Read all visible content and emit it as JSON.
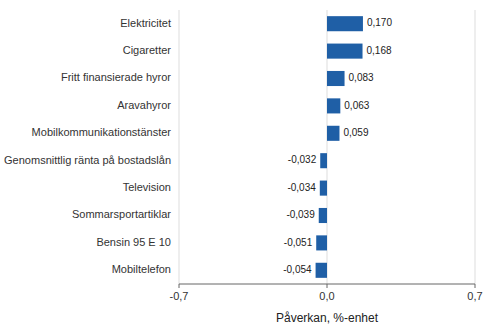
{
  "chart_data": {
    "type": "bar",
    "orientation": "horizontal",
    "categories": [
      "Mobiltelefon",
      "Bensin 95 E 10",
      "Sommarsportartiklar",
      "Television",
      "Genomsnittlig ränta på bostadslån",
      "Mobilkommunikationstänster",
      "Aravahyror",
      "Fritt finansierade hyror",
      "Cigaretter",
      "Elektricitet"
    ],
    "values": [
      -0.054,
      -0.051,
      -0.039,
      -0.034,
      -0.032,
      0.059,
      0.063,
      0.083,
      0.168,
      0.17
    ],
    "value_labels": [
      "-0,054",
      "-0,051",
      "-0,039",
      "-0,034",
      "-0,032",
      "0,059",
      "0,063",
      "0,083",
      "0,168",
      "0,170"
    ],
    "color": "#1f5fa6",
    "xlabel": "Påverkan, %-enhet",
    "xlim": [
      -0.7,
      0.7
    ],
    "xticks": [
      {
        "value": -0.7,
        "label": "-0,7"
      },
      {
        "value": 0.0,
        "label": "0,0"
      },
      {
        "value": 0.7,
        "label": "0,7"
      }
    ],
    "grid": true,
    "data_labels": true
  }
}
